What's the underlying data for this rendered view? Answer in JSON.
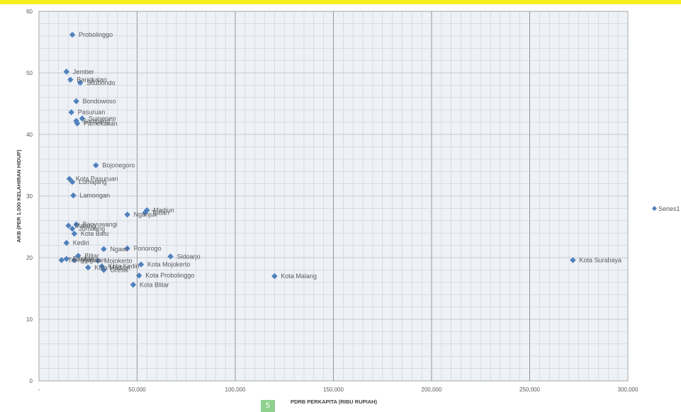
{
  "page_badge": "5",
  "chart_data": {
    "type": "scatter",
    "title": "",
    "xlabel": "PDRB PERKAPITA (RIBU RUPIAH)",
    "ylabel": "AKB (PER 1.000 KELAHIRAN HIDUP)",
    "xlim": [
      0,
      300000
    ],
    "ylim": [
      0,
      60
    ],
    "x_ticks": [
      0,
      50000,
      100000,
      150000,
      200000,
      250000,
      300000
    ],
    "x_tick_labels": [
      "-",
      "50,000",
      "100,000",
      "150,000",
      "200,000",
      "250,000",
      "300,000"
    ],
    "y_ticks": [
      0,
      10,
      20,
      30,
      40,
      50,
      60
    ],
    "grid": true,
    "legend": {
      "position": "right",
      "entries": [
        "Series1"
      ]
    },
    "colors": {
      "marker": "#4f81bd",
      "grid": "#c9cfd8",
      "major_grid": "#7f7f7f"
    },
    "series": [
      {
        "name": "Series1",
        "points": [
          {
            "x": 17000,
            "y": 56.2,
            "label": "Probolinggo"
          },
          {
            "x": 14000,
            "y": 50.2,
            "label": "Jember"
          },
          {
            "x": 16000,
            "y": 48.9,
            "label": "Bangkalan"
          },
          {
            "x": 21000,
            "y": 48.4,
            "label": "Situbondo"
          },
          {
            "x": 19000,
            "y": 45.4,
            "label": "Bondowoso"
          },
          {
            "x": 16500,
            "y": 43.6,
            "label": "Pasuruan"
          },
          {
            "x": 22000,
            "y": 42.6,
            "label": "Sumenep"
          },
          {
            "x": 19000,
            "y": 42.2,
            "label": "Sampang"
          },
          {
            "x": 19500,
            "y": 41.8,
            "label": "Pamekasan"
          },
          {
            "x": 29000,
            "y": 35.0,
            "label": "Bojonegoro"
          },
          {
            "x": 15500,
            "y": 32.8,
            "label": "Kota Pasuruan"
          },
          {
            "x": 17000,
            "y": 32.3,
            "label": "Lumajang"
          },
          {
            "x": 17500,
            "y": 30.1,
            "label": "Lamongan"
          },
          {
            "x": 55000,
            "y": 27.7,
            "label": "Madiun"
          },
          {
            "x": 54000,
            "y": 27.3,
            "label": "Tuban"
          },
          {
            "x": 45000,
            "y": 27.0,
            "label": "Nganjuk"
          },
          {
            "x": 19000,
            "y": 25.4,
            "label": "Banyuwangi"
          },
          {
            "x": 15000,
            "y": 25.2,
            "label": "Malang"
          },
          {
            "x": 17000,
            "y": 24.7,
            "label": "Jombang"
          },
          {
            "x": 18000,
            "y": 23.9,
            "label": "Kota Batu"
          },
          {
            "x": 14000,
            "y": 22.4,
            "label": "Kediri"
          },
          {
            "x": 33000,
            "y": 21.4,
            "label": "Ngawi"
          },
          {
            "x": 45000,
            "y": 21.5,
            "label": "Ponorogo"
          },
          {
            "x": 67000,
            "y": 20.2,
            "label": "Sidoarjo"
          },
          {
            "x": 20000,
            "y": 20.3,
            "label": "Blitar"
          },
          {
            "x": 14000,
            "y": 19.8,
            "label": "Pacitan"
          },
          {
            "x": 11500,
            "y": 19.6,
            "label": "Trenggalek"
          },
          {
            "x": 18000,
            "y": 19.6,
            "label": "Magetan"
          },
          {
            "x": 30000,
            "y": 19.5,
            "label": "Mojokerto"
          },
          {
            "x": 52000,
            "y": 18.9,
            "label": "Kota Mojokerto"
          },
          {
            "x": 32000,
            "y": 18.6,
            "label": "Kota Kediri"
          },
          {
            "x": 25000,
            "y": 18.4,
            "label": "Kota Madiun"
          },
          {
            "x": 33000,
            "y": 18.0,
            "label": "Gresik"
          },
          {
            "x": 51000,
            "y": 17.1,
            "label": "Kota Probolinggo"
          },
          {
            "x": 120000,
            "y": 17.0,
            "label": "Kota Malang"
          },
          {
            "x": 48000,
            "y": 15.6,
            "label": "Kota Blitar"
          },
          {
            "x": 272000,
            "y": 19.6,
            "label": "Kota Surabaya"
          }
        ]
      }
    ]
  }
}
